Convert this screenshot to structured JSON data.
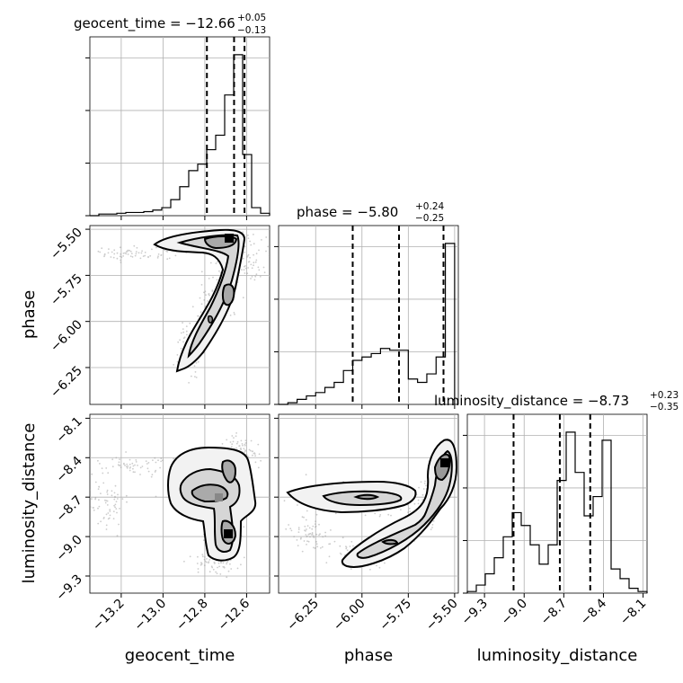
{
  "chart_data": {
    "type": "corner",
    "parameters": [
      {
        "key": "geocent_time",
        "label": "geocent_time",
        "title": {
          "prefix": "geocent_time = ",
          "median": "−12.66",
          "upper": "+0.05",
          "lower": "−0.13"
        },
        "range": [
          -13.35,
          -12.49
        ],
        "ticks": [
          -13.2,
          -13.0,
          -12.8,
          -12.6
        ],
        "tick_labels": [
          "−13.2",
          "−13.0",
          "−12.8",
          "−12.6"
        ],
        "quantiles": [
          -12.79,
          -12.66,
          -12.61
        ],
        "hist_edges": [
          -13.35,
          -13.307,
          -13.264,
          -13.221,
          -13.178,
          -13.135,
          -13.092,
          -13.049,
          -13.006,
          -12.963,
          -12.92,
          -12.877,
          -12.834,
          -12.791,
          -12.748,
          -12.705,
          -12.662,
          -12.619,
          -12.576,
          -12.533,
          -12.49
        ],
        "hist_counts": [
          0.0,
          0.01,
          0.01,
          0.015,
          0.02,
          0.02,
          0.025,
          0.035,
          0.05,
          0.1,
          0.18,
          0.28,
          0.32,
          0.41,
          0.5,
          0.75,
          1.0,
          0.38,
          0.05,
          0.015
        ]
      },
      {
        "key": "phase",
        "label": "phase",
        "title": {
          "prefix": "phase = ",
          "median": "−5.80",
          "upper": "+0.24",
          "lower": "−0.25"
        },
        "range": [
          -6.45,
          -5.48
        ],
        "ticks": [
          -6.25,
          -6.0,
          -5.75,
          -5.5
        ],
        "tick_labels": [
          "−6.25",
          "−6.00",
          "−5.75",
          "−5.50"
        ],
        "quantiles": [
          -6.05,
          -5.8,
          -5.56
        ],
        "hist_edges": [
          -6.45,
          -6.4,
          -6.35,
          -6.3,
          -6.25,
          -6.2,
          -6.15,
          -6.1,
          -6.05,
          -6.0,
          -5.95,
          -5.9,
          -5.85,
          -5.8,
          -5.75,
          -5.7,
          -5.65,
          -5.6,
          -5.55,
          -5.5
        ],
        "hist_counts": [
          0.0,
          0.01,
          0.03,
          0.05,
          0.07,
          0.1,
          0.13,
          0.2,
          0.26,
          0.28,
          0.3,
          0.33,
          0.32,
          0.32,
          0.15,
          0.13,
          0.18,
          0.28,
          0.95
        ]
      },
      {
        "key": "luminosity_distance",
        "label": "luminosity_distance",
        "title": {
          "prefix": "luminosity_distance = ",
          "median": "−8.73",
          "upper": "+0.23",
          "lower": "−0.35"
        },
        "range": [
          -9.43,
          -8.07
        ],
        "ticks": [
          -9.3,
          -9.0,
          -8.7,
          -8.4,
          -8.1
        ],
        "tick_labels": [
          "−9.3",
          "−9.0",
          "−8.7",
          "−8.4",
          "−8.1"
        ],
        "quantiles": [
          -9.08,
          -8.73,
          -8.5
        ],
        "hist_edges": [
          -9.43,
          -9.362,
          -9.294,
          -9.226,
          -9.158,
          -9.09,
          -9.022,
          -8.954,
          -8.886,
          -8.818,
          -8.75,
          -8.682,
          -8.614,
          -8.546,
          -8.478,
          -8.41,
          -8.342,
          -8.274,
          -8.206,
          -8.138,
          -8.07
        ],
        "hist_counts": [
          0.01,
          0.05,
          0.12,
          0.22,
          0.35,
          0.5,
          0.42,
          0.3,
          0.18,
          0.3,
          0.7,
          1.0,
          0.75,
          0.48,
          0.6,
          0.95,
          0.15,
          0.09,
          0.03,
          0.01
        ]
      }
    ],
    "pair_panels": [
      {
        "x": "geocent_time",
        "y": "phase"
      },
      {
        "x": "geocent_time",
        "y": "luminosity_distance"
      },
      {
        "x": "phase",
        "y": "luminosity_distance"
      }
    ],
    "grid": true
  }
}
